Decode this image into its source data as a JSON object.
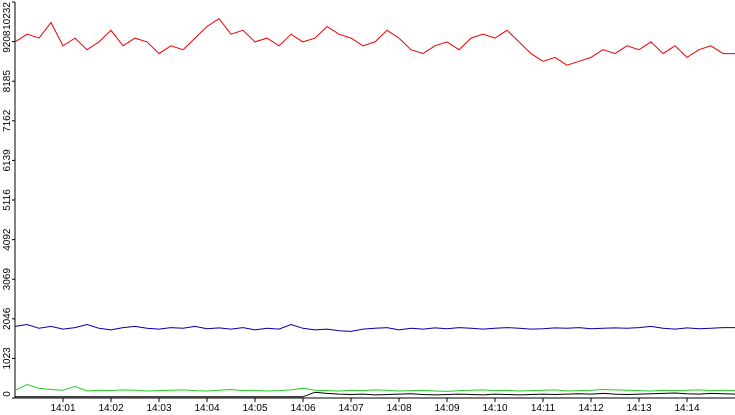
{
  "chart_data": {
    "type": "line",
    "categories": [
      null,
      null,
      null,
      null,
      "14:01",
      null,
      null,
      null,
      "14:02",
      null,
      null,
      null,
      "14:03",
      null,
      null,
      null,
      "14:04",
      null,
      null,
      null,
      "14:05",
      null,
      null,
      null,
      "14:06",
      null,
      null,
      null,
      "14:07",
      null,
      null,
      null,
      "14:08",
      null,
      null,
      null,
      "14:09",
      null,
      null,
      null,
      "14:10",
      null,
      null,
      null,
      "14:11",
      null,
      null,
      null,
      "14:12",
      null,
      null,
      null,
      "14:13",
      null,
      null,
      null,
      "14:14",
      null,
      null,
      null,
      null
    ],
    "series": [
      {
        "color": "#ee0000",
        "values": [
          9200,
          9400,
          9300,
          9700,
          9100,
          9300,
          9000,
          9200,
          9500,
          9100,
          9300,
          9200,
          8900,
          9100,
          9000,
          9300,
          9600,
          9800,
          9400,
          9500,
          9200,
          9300,
          9100,
          9400,
          9200,
          9300,
          9600,
          9400,
          9300,
          9100,
          9200,
          9500,
          9300,
          9000,
          8900,
          9100,
          9200,
          9000,
          9300,
          9400,
          9300,
          9500,
          9200,
          8900,
          8700,
          8800,
          8600,
          8700,
          8800,
          9000,
          8900,
          9100,
          9000,
          9200,
          8900,
          9100,
          8800,
          9000,
          9100,
          8900,
          8900
        ]
      },
      {
        "color": "#0000aa",
        "values": [
          1850,
          1900,
          1800,
          1850,
          1780,
          1820,
          1900,
          1800,
          1760,
          1820,
          1850,
          1800,
          1780,
          1820,
          1800,
          1850,
          1790,
          1810,
          1780,
          1820,
          1760,
          1800,
          1780,
          1900,
          1800,
          1760,
          1780,
          1740,
          1720,
          1780,
          1800,
          1820,
          1760,
          1800,
          1780,
          1810,
          1790,
          1820,
          1800,
          1780,
          1800,
          1820,
          1800,
          1780,
          1790,
          1810,
          1800,
          1820,
          1790,
          1800,
          1810,
          1800,
          1820,
          1850,
          1800,
          1780,
          1810,
          1790,
          1800,
          1820,
          1820
        ]
      },
      {
        "color": "#22cc22",
        "values": [
          200,
          350,
          250,
          220,
          200,
          300,
          180,
          200,
          190,
          210,
          200,
          180,
          190,
          200,
          210,
          190,
          180,
          200,
          220,
          190,
          200,
          180,
          190,
          210,
          250,
          200,
          190,
          180,
          200,
          190,
          210,
          200,
          180,
          190,
          200,
          180,
          170,
          190,
          200,
          210,
          190,
          200,
          180,
          190,
          200,
          210,
          180,
          190,
          200,
          220,
          210,
          200,
          190,
          180,
          200,
          190,
          200,
          210,
          190,
          200,
          190
        ]
      },
      {
        "color": "#000000",
        "values": [
          30,
          30,
          30,
          30,
          30,
          30,
          30,
          30,
          30,
          30,
          30,
          30,
          30,
          30,
          30,
          30,
          30,
          30,
          30,
          30,
          30,
          30,
          30,
          30,
          30,
          150,
          120,
          100,
          90,
          100,
          80,
          90,
          100,
          110,
          90,
          80,
          90,
          100,
          90,
          80,
          100,
          90,
          80,
          90,
          100,
          90,
          100,
          110,
          100,
          120,
          100,
          90,
          100,
          110,
          120,
          130,
          110,
          100,
          120,
          110,
          100
        ]
      }
    ],
    "ylim": [
      0,
      10232
    ],
    "yticks": [
      0,
      1023,
      2046,
      3069,
      4092,
      5116,
      6139,
      7162,
      8185,
      9208,
      10232
    ]
  }
}
